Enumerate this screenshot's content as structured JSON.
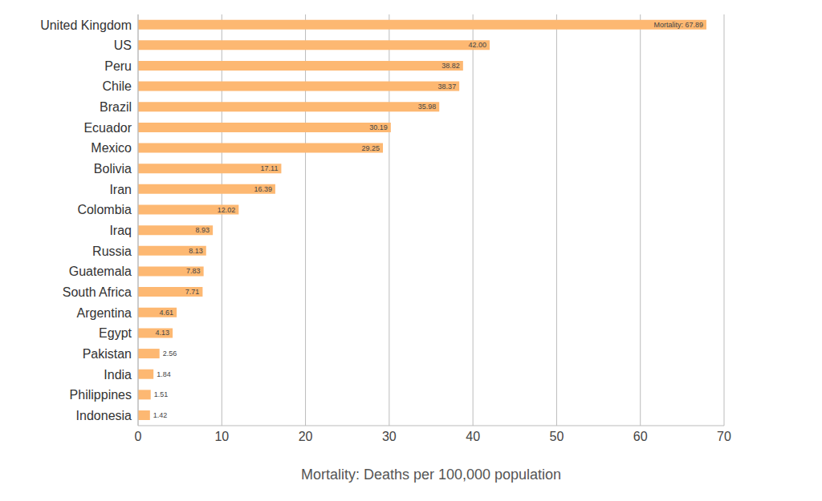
{
  "chart_data": {
    "type": "bar",
    "orientation": "horizontal",
    "x_label": "Mortality: Deaths per 100,000 population",
    "categories": [
      "United Kingdom",
      "US",
      "Peru",
      "Chile",
      "Brazil",
      "Ecuador",
      "Mexico",
      "Bolivia",
      "Iran",
      "Colombia",
      "Iraq",
      "Russia",
      "Guatemala",
      "South Africa",
      "Argentina",
      "Egypt",
      "Pakistan",
      "India",
      "Philippines",
      "Indonesia"
    ],
    "values": [
      67.89,
      42.0,
      38.82,
      38.37,
      35.98,
      30.19,
      29.25,
      17.11,
      16.39,
      12.02,
      8.93,
      8.13,
      7.83,
      7.71,
      4.61,
      4.13,
      2.56,
      1.84,
      1.51,
      1.42
    ],
    "value_labels": [
      "Mortality: 67.89",
      "42.00",
      "38.82",
      "38.37",
      "35.98",
      "30.19",
      "29.25",
      "17.11",
      "16.39",
      "12.02",
      "8.93",
      "8.13",
      "7.83",
      "7.71",
      "4.61",
      "4.13",
      "2.56",
      "1.84",
      "1.51",
      "1.42"
    ],
    "color": "#fdb872",
    "xlim": [
      0,
      70
    ],
    "xticks": [
      0,
      10,
      20,
      30,
      40,
      50,
      60,
      70
    ],
    "grid": true,
    "data_labels": true
  }
}
